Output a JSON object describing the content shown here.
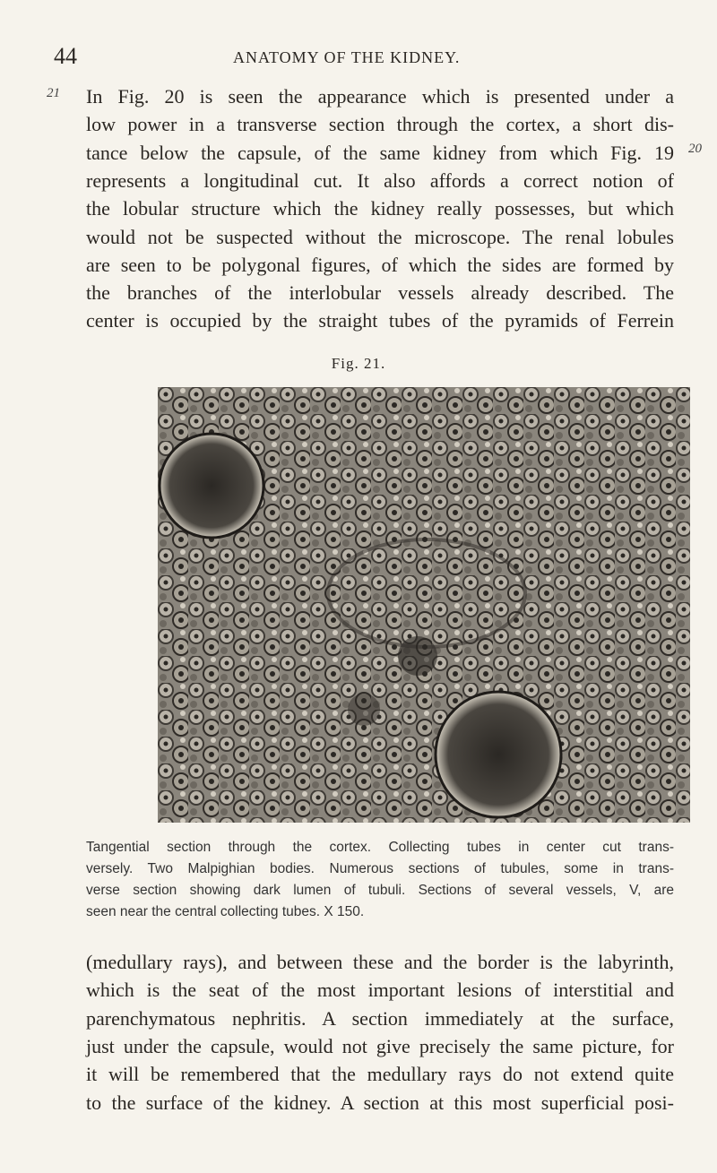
{
  "header": {
    "page_number": "44",
    "title": "ANATOMY OF THE KIDNEY."
  },
  "margin_notes": [
    "21",
    "20"
  ],
  "paragraphs": [
    {
      "lines": [
        "In Fig. 20 is seen the appearance which is presented under a",
        "low power in a transverse section through the cortex, a short dis-",
        "tance below the capsule, of the same kidney from which Fig. 19",
        "represents a longitudinal cut. It also affords a correct notion of",
        "the lobular structure which the kidney really possesses, but which",
        "would not be suspected without the microscope. The renal lobules",
        "are seen to be polygonal figures, of which the sides are formed by",
        "the branches of the interlobular vessels already described. The",
        "center is occupied by the straight tubes of the pyramids of Ferrein"
      ]
    },
    {
      "lines": [
        "(medullary rays), and between these and the border is the labyrinth,",
        "which is the seat of the most important lesions of interstitial and",
        "parenchymatous nephritis. A section immediately at the surface,",
        "just under the capsule, would not give precisely the same picture, for",
        "it will be remembered that the medullary rays do not extend quite",
        "to the surface of the kidney. A section at this most superficial posi-"
      ]
    }
  ],
  "figure": {
    "label": "Fig. 21.",
    "caption_lines": [
      "Tangential section through the cortex. Collecting tubes in center cut trans-",
      "versely. Two Malpighian bodies. Numerous sections of tubules, some in trans-",
      "verse section showing dark lumen of tubuli. Sections of several vessels, V, are",
      "seen near the central collecting tubes. X 150."
    ]
  }
}
